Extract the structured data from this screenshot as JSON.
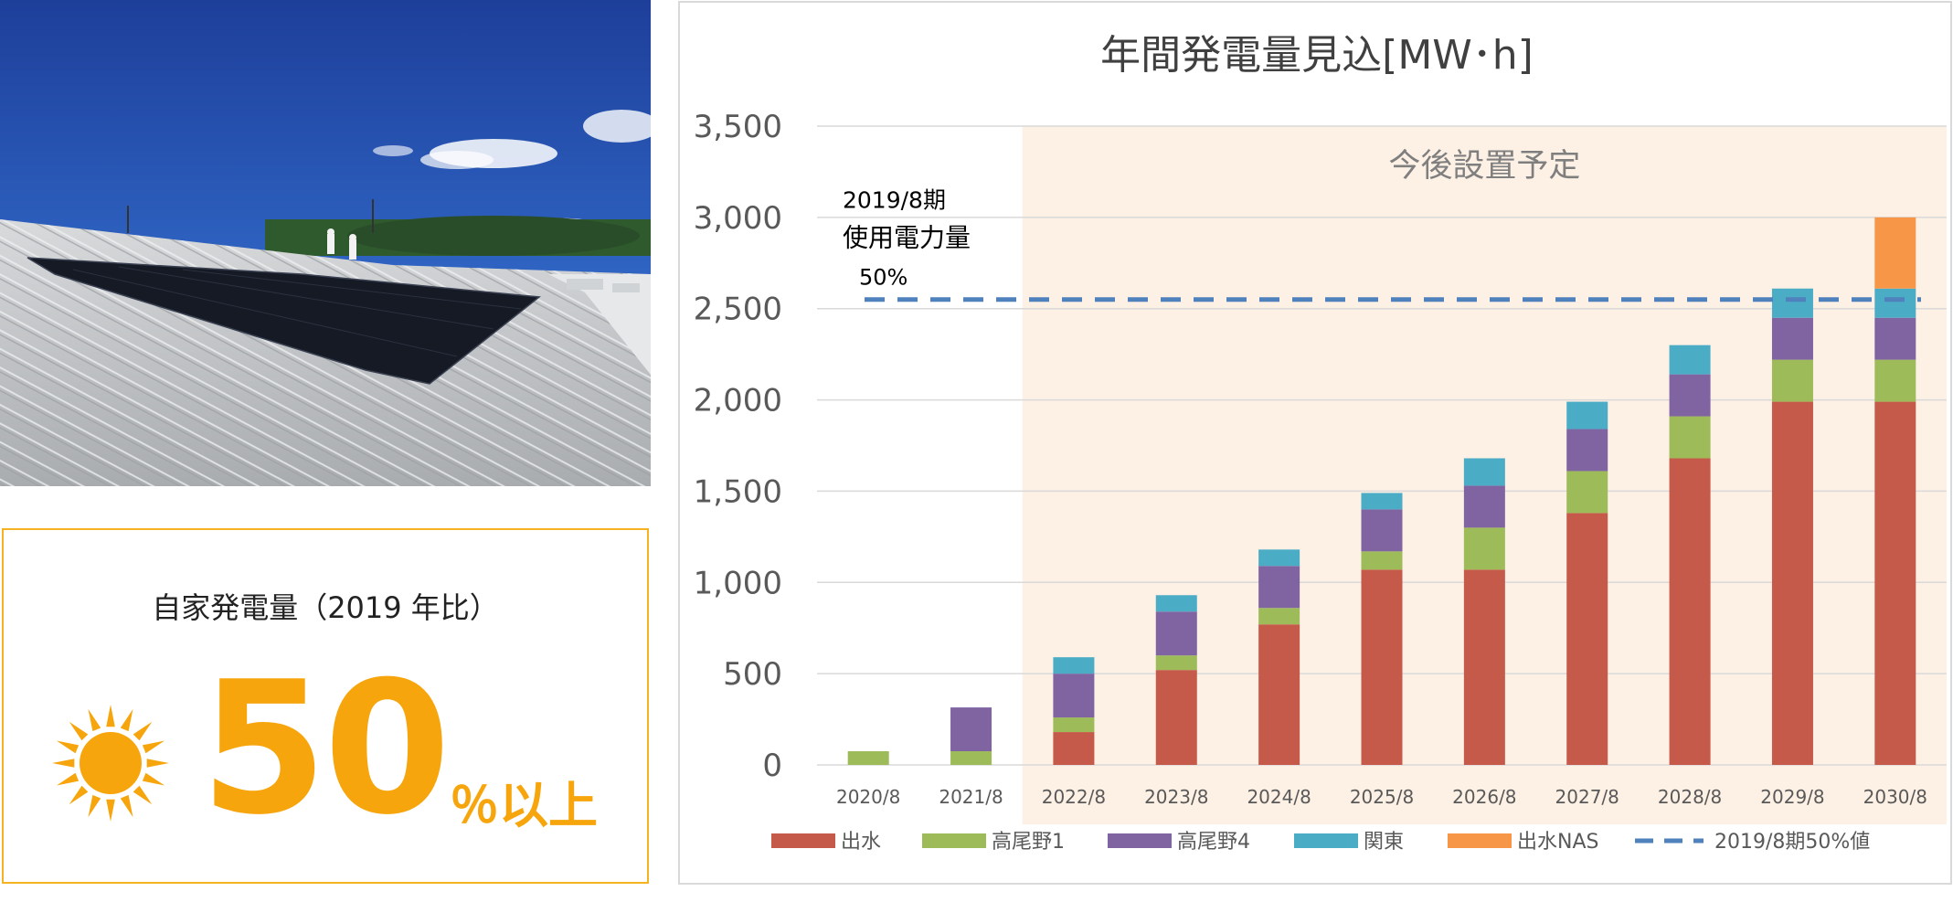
{
  "summary": {
    "label": "自家発電量（2019 年比）",
    "value": "50",
    "suffix": "％以上",
    "icon": "sun-icon",
    "accent_color": "#f7a50d"
  },
  "photo": {
    "icon": "solar-roof-photo"
  },
  "chart_data": {
    "type": "bar",
    "stacked": true,
    "title": "年間発電量見込[MW･h]",
    "categories": [
      "2020/8",
      "2021/8",
      "2022/8",
      "2023/8",
      "2024/8",
      "2025/8",
      "2026/8",
      "2027/8",
      "2028/8",
      "2029/8",
      "2030/8"
    ],
    "series": [
      {
        "name": "出水",
        "color": "#c65a4a",
        "values": [
          0,
          0,
          180,
          520,
          770,
          1070,
          1070,
          1380,
          1680,
          1990,
          1990
        ]
      },
      {
        "name": "高尾野1",
        "color": "#9dbb59",
        "values": [
          75,
          75,
          80,
          80,
          90,
          100,
          230,
          230,
          230,
          230,
          230
        ]
      },
      {
        "name": "高尾野4",
        "color": "#8064a2",
        "values": [
          0,
          240,
          240,
          240,
          230,
          230,
          230,
          230,
          230,
          230,
          230
        ]
      },
      {
        "name": "関東",
        "color": "#4bacc6",
        "values": [
          0,
          0,
          90,
          90,
          90,
          90,
          150,
          150,
          160,
          160,
          160
        ]
      },
      {
        "name": "出水NAS",
        "color": "#f79646",
        "values": [
          0,
          0,
          0,
          0,
          0,
          0,
          0,
          0,
          0,
          0,
          390
        ]
      }
    ],
    "reference_line": {
      "name": "2019/8期50%値",
      "value": 2550,
      "color": "#4f81bd",
      "style": "dashed",
      "annotation": [
        "2019/8期",
        "使用電力量",
        "50%"
      ]
    },
    "shaded_region": {
      "label": "今後設置予定",
      "from_category": "2022/8",
      "to_category": "2030/8",
      "color": "#fdf0e4"
    },
    "ylim": [
      0,
      3500
    ],
    "yticks": [
      0,
      500,
      1000,
      1500,
      2000,
      2500,
      3000,
      3500
    ],
    "ytick_labels": [
      "0",
      "500",
      "1,000",
      "1,500",
      "2,000",
      "2,500",
      "3,000",
      "3,500"
    ],
    "grid": true,
    "legend_position": "bottom"
  }
}
